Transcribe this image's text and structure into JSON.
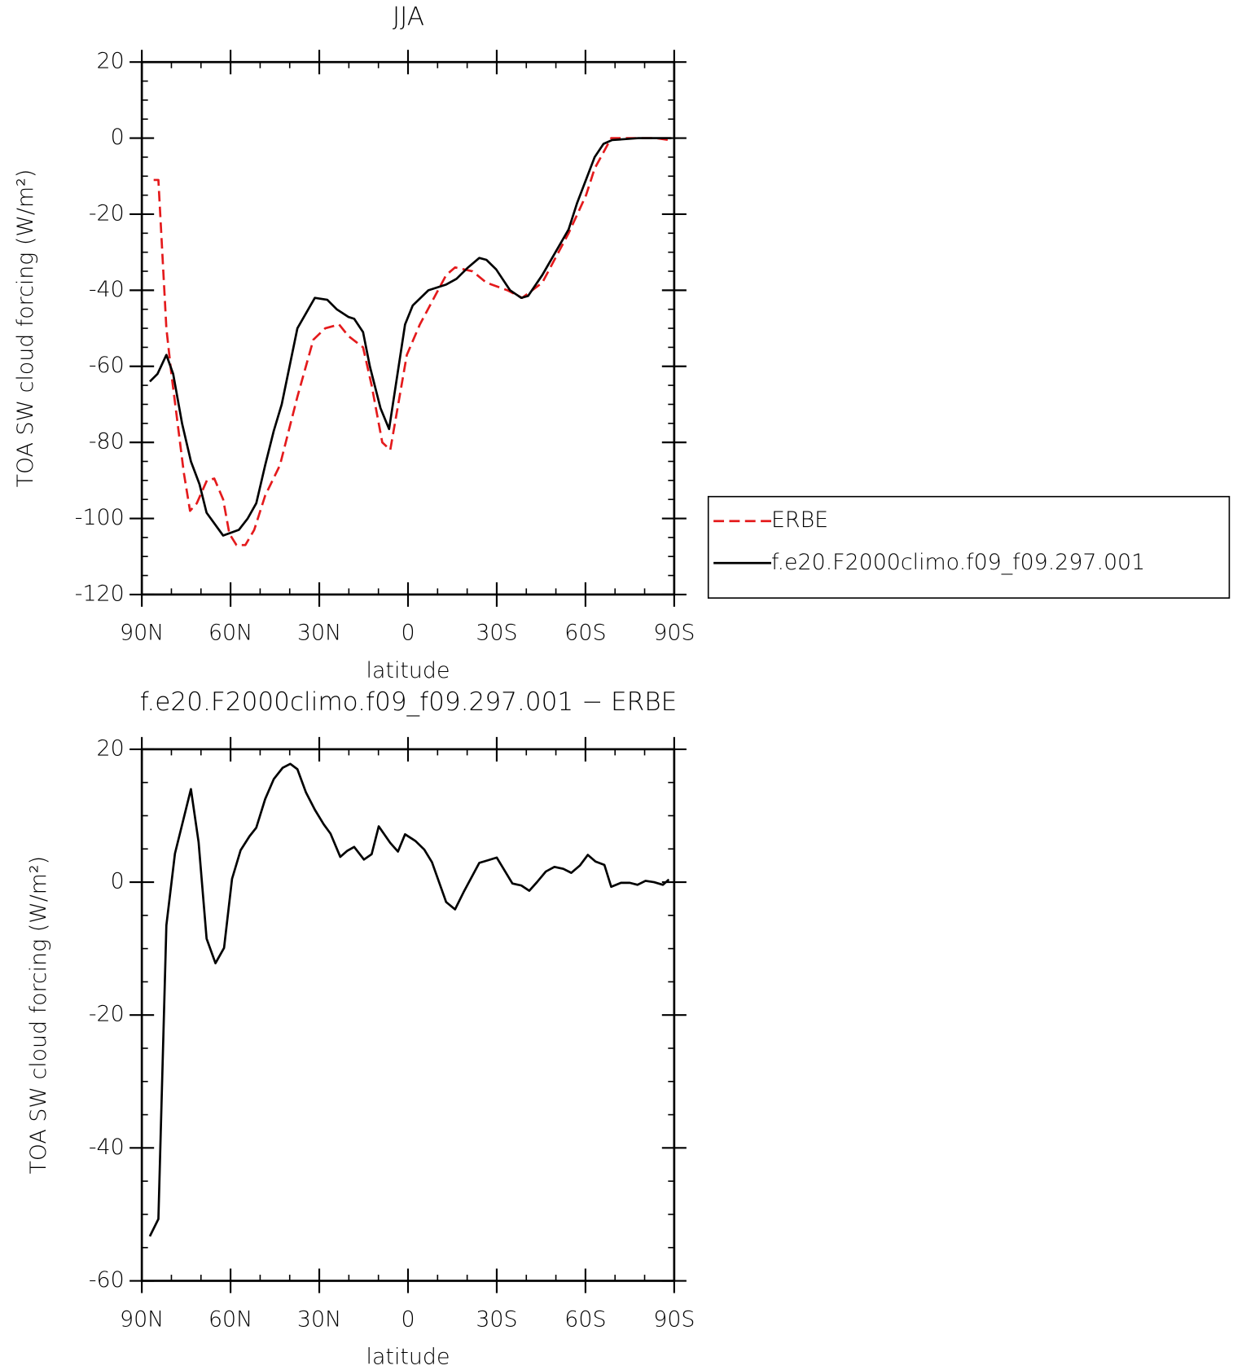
{
  "chart_data": [
    {
      "type": "line",
      "title": "JJA",
      "x_label": "latitude",
      "y_label": "TOA SW cloud forcing (W/m²)",
      "xlim": [
        90,
        -90
      ],
      "xticks": [
        {
          "value": 90,
          "label": "90N"
        },
        {
          "value": 60,
          "label": "60N"
        },
        {
          "value": 30,
          "label": "30N"
        },
        0,
        {
          "value": -30,
          "label": "30S"
        },
        {
          "value": -60,
          "label": "60S"
        },
        {
          "value": -90,
          "label": "90S"
        }
      ],
      "ylim": [
        -120,
        20
      ],
      "yticks": [
        -120,
        -100,
        -80,
        -60,
        -40,
        -20,
        0,
        20
      ],
      "legend": "right",
      "series": [
        {
          "name": "ERBE",
          "color": "#e41a1c",
          "dashed": true,
          "x": [
            86,
            84.4,
            81.7,
            80,
            75.8,
            73.7,
            71.4,
            68,
            65.5,
            62.5,
            60.4,
            58,
            55,
            52,
            48.3,
            43.3,
            37.4,
            32,
            28,
            23.3,
            20.2,
            15.2,
            12.3,
            8.7,
            6,
            0.4,
            -4,
            -12.9,
            -15.9,
            -21.8,
            -26.5,
            -33.6,
            -38.6,
            -45.4,
            -54.3,
            -60.2,
            -63.1,
            -68.7,
            -75,
            -83.8,
            -88.2
          ],
          "values": [
            -11,
            -11,
            -50,
            -62,
            -88,
            -98,
            -96,
            -90,
            -89.5,
            -95,
            -104,
            -107,
            -107,
            -103,
            -94,
            -86,
            -68,
            -53,
            -50,
            -49,
            -52,
            -55,
            -65,
            -80,
            -82,
            -57,
            -49,
            -36,
            -34,
            -35,
            -38,
            -40,
            -42,
            -38,
            -25,
            -15,
            -8,
            0,
            0,
            0,
            -0.5
          ]
        },
        {
          "name": "f.e20.F2000climo.f09_f09.297.001",
          "color": "#000000",
          "dashed": false,
          "x": [
            87.3,
            84.7,
            81.7,
            79.4,
            76.4,
            73.4,
            70.5,
            68.1,
            62.5,
            57.2,
            54.2,
            51.3,
            48.3,
            45.4,
            42.7,
            37.4,
            31.5,
            27.3,
            24.1,
            20.2,
            18.2,
            15.2,
            12.9,
            9.3,
            6.4,
            1,
            -1.6,
            -6.9,
            -12.9,
            -16.4,
            -20.3,
            -24.1,
            -26.5,
            -29.8,
            -34.5,
            -38.3,
            -40.6,
            -45.4,
            -54.3,
            -57.2,
            -63.1,
            -66.1,
            -69,
            -77.9,
            -89.1
          ],
          "values": [
            -64,
            -62,
            -57,
            -62,
            -75,
            -85,
            -91,
            -98.5,
            -104.5,
            -103,
            -100,
            -96,
            -86,
            -77,
            -70,
            -50,
            -42,
            -42.5,
            -45,
            -47,
            -47.5,
            -51,
            -60,
            -71,
            -76.5,
            -49,
            -44,
            -40,
            -38.5,
            -37,
            -34,
            -31.5,
            -32,
            -34.5,
            -40,
            -42,
            -41.5,
            -36,
            -24,
            -17,
            -5,
            -1.5,
            -0.5,
            0,
            0
          ]
        }
      ]
    },
    {
      "type": "line",
      "title": "f.e20.F2000climo.f09_f09.297.001 − ERBE",
      "x_label": "latitude",
      "y_label": "TOA SW cloud forcing (W/m²)",
      "xlim": [
        90,
        -90
      ],
      "xticks": [
        {
          "value": 90,
          "label": "90N"
        },
        {
          "value": 60,
          "label": "60N"
        },
        {
          "value": 30,
          "label": "30N"
        },
        0,
        {
          "value": -30,
          "label": "30S"
        },
        {
          "value": -60,
          "label": "60S"
        },
        {
          "value": -90,
          "label": "90S"
        }
      ],
      "ylim": [
        -60,
        20
      ],
      "yticks": [
        -60,
        -40,
        -20,
        0,
        20
      ],
      "series": [
        {
          "color": "#000000",
          "dashed": false,
          "x": [
            87.3,
            84.4,
            81.7,
            78.8,
            73.4,
            70.8,
            68.1,
            65.1,
            62.2,
            59.5,
            56.6,
            53.6,
            51.3,
            48.3,
            45.4,
            42.4,
            39.8,
            37.4,
            34.5,
            31.5,
            28.5,
            26.2,
            22.9,
            20.6,
            18.2,
            14.9,
            12.3,
            9.9,
            6,
            3.4,
            1,
            -2.5,
            -5.5,
            -8.1,
            -12.9,
            -15.9,
            -18.8,
            -24.1,
            -27.1,
            -30,
            -35.3,
            -38.3,
            -41,
            -43.6,
            -46.6,
            -49.5,
            -52.5,
            -55.2,
            -58.1,
            -60.8,
            -63.4,
            -66.4,
            -68.7,
            -72,
            -75,
            -77.6,
            -80.3,
            -83.2,
            -86.2,
            -88.2
          ],
          "values": [
            -53.3,
            -50.7,
            -6.5,
            4.3,
            14,
            6,
            -8.5,
            -12.2,
            -9.9,
            0.5,
            4.8,
            6.9,
            8.2,
            12.5,
            15.5,
            17.2,
            17.8,
            17,
            13.5,
            10.9,
            8.7,
            7.3,
            3.8,
            4.7,
            5.3,
            3.4,
            4.2,
            8.4,
            5.9,
            4.6,
            7.2,
            6.2,
            4.9,
            3,
            -3,
            -4.1,
            -1.5,
            2.9,
            3.3,
            3.7,
            -0.2,
            -0.5,
            -1.3,
            0,
            1.6,
            2.3,
            2,
            1.4,
            2.5,
            4.1,
            3.1,
            2.6,
            -0.7,
            -0.1,
            -0.1,
            -0.4,
            0.2,
            0,
            -0.4,
            0.4
          ]
        }
      ]
    }
  ]
}
